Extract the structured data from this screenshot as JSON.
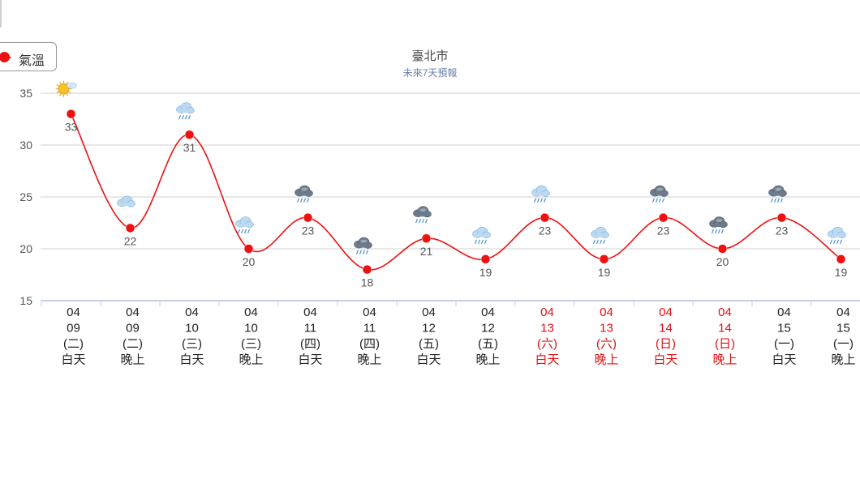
{
  "title": "臺北市",
  "subtitle": "未來7天預報",
  "legend": {
    "label": "氣溫",
    "color": "#ee1111"
  },
  "chart_data": {
    "type": "line",
    "ylim": [
      15,
      35
    ],
    "yticks": [
      15,
      20,
      25,
      30,
      35
    ],
    "grid": true,
    "legend_position": "top-left",
    "series": [
      {
        "name": "氣溫",
        "values": [
          33,
          22,
          31,
          20,
          23,
          18,
          21,
          19,
          23,
          19,
          23,
          20,
          23,
          19
        ],
        "color": "#ee1111"
      }
    ],
    "categories": [
      {
        "month": "04",
        "day": "09",
        "weekday": "(二)",
        "period": "白天",
        "weather_icon": "sun-cloud-icon",
        "holiday": false
      },
      {
        "month": "04",
        "day": "09",
        "weekday": "(二)",
        "period": "晚上",
        "weather_icon": "cloud-icon",
        "holiday": false
      },
      {
        "month": "04",
        "day": "10",
        "weekday": "(三)",
        "period": "白天",
        "weather_icon": "cloud-rain-icon",
        "holiday": false
      },
      {
        "month": "04",
        "day": "10",
        "weekday": "(三)",
        "period": "晚上",
        "weather_icon": "cloud-rain-icon",
        "holiday": false
      },
      {
        "month": "04",
        "day": "11",
        "weekday": "(四)",
        "period": "白天",
        "weather_icon": "storm-rain-icon",
        "holiday": false
      },
      {
        "month": "04",
        "day": "11",
        "weekday": "(四)",
        "period": "晚上",
        "weather_icon": "storm-rain-icon",
        "holiday": false
      },
      {
        "month": "04",
        "day": "12",
        "weekday": "(五)",
        "period": "白天",
        "weather_icon": "storm-rain-icon",
        "holiday": false
      },
      {
        "month": "04",
        "day": "12",
        "weekday": "(五)",
        "period": "晚上",
        "weather_icon": "cloud-rain-icon",
        "holiday": false
      },
      {
        "month": "04",
        "day": "13",
        "weekday": "(六)",
        "period": "白天",
        "weather_icon": "cloud-rain-icon",
        "holiday": true
      },
      {
        "month": "04",
        "day": "13",
        "weekday": "(六)",
        "period": "晚上",
        "weather_icon": "cloud-rain-icon",
        "holiday": true
      },
      {
        "month": "04",
        "day": "14",
        "weekday": "(日)",
        "period": "白天",
        "weather_icon": "storm-rain-icon",
        "holiday": true
      },
      {
        "month": "04",
        "day": "14",
        "weekday": "(日)",
        "period": "晚上",
        "weather_icon": "storm-rain-icon",
        "holiday": true
      },
      {
        "month": "04",
        "day": "15",
        "weekday": "(一)",
        "period": "白天",
        "weather_icon": "storm-rain-icon",
        "holiday": false
      },
      {
        "month": "04",
        "day": "15",
        "weekday": "(一)",
        "period": "晚上",
        "weather_icon": "cloud-rain-icon",
        "holiday": false
      }
    ]
  },
  "colors": {
    "holiday_label": "#e01010",
    "normal_label": "#222222",
    "grid": "#d0d0d0",
    "axis": "#c0d0e0",
    "data_label": "#555555"
  }
}
